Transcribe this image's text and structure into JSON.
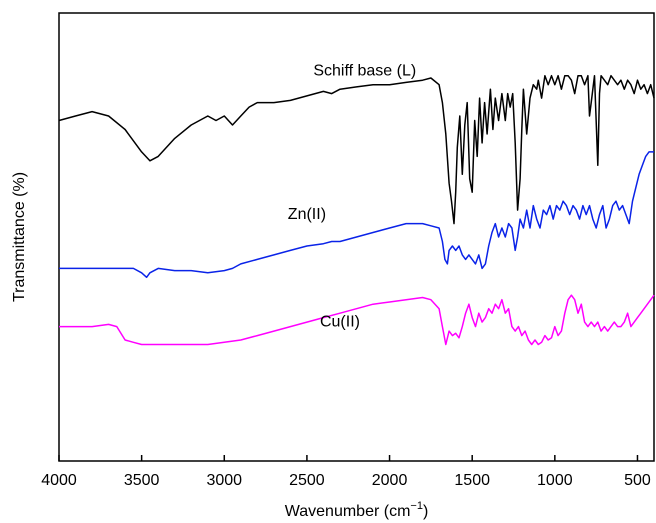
{
  "chart_data": {
    "type": "line",
    "xlabel": "Wavenumber (cm",
    "xlabel_sup": "−1",
    "xlabel_close": ")",
    "ylabel": "Transmittance (%)",
    "xlim": [
      4000,
      400
    ],
    "x_reversed": true,
    "ylim": [
      0,
      100
    ],
    "y_tick_labels_shown": false,
    "grid": false,
    "x_ticks": [
      4000,
      3500,
      3000,
      2500,
      2000,
      1500,
      1000,
      500
    ],
    "series": [
      {
        "name": "Schiff base (L)",
        "color": "#000000",
        "label_at": [
          2150,
          86
        ],
        "points": [
          [
            4000,
            76
          ],
          [
            3900,
            77
          ],
          [
            3800,
            78
          ],
          [
            3700,
            77
          ],
          [
            3600,
            74
          ],
          [
            3500,
            69
          ],
          [
            3450,
            67
          ],
          [
            3400,
            68
          ],
          [
            3300,
            72
          ],
          [
            3200,
            75
          ],
          [
            3100,
            77
          ],
          [
            3050,
            76
          ],
          [
            3000,
            77
          ],
          [
            2950,
            75
          ],
          [
            2900,
            77
          ],
          [
            2850,
            79
          ],
          [
            2800,
            80
          ],
          [
            2700,
            80
          ],
          [
            2600,
            80.5
          ],
          [
            2500,
            81.5
          ],
          [
            2400,
            82.5
          ],
          [
            2350,
            82
          ],
          [
            2300,
            83
          ],
          [
            2200,
            83.5
          ],
          [
            2100,
            84
          ],
          [
            2000,
            84
          ],
          [
            1900,
            84.5
          ],
          [
            1800,
            85
          ],
          [
            1750,
            85.5
          ],
          [
            1700,
            84
          ],
          [
            1680,
            80
          ],
          [
            1660,
            73
          ],
          [
            1640,
            62
          ],
          [
            1625,
            58
          ],
          [
            1610,
            53
          ],
          [
            1600,
            60
          ],
          [
            1590,
            70
          ],
          [
            1575,
            77
          ],
          [
            1560,
            64
          ],
          [
            1545,
            75
          ],
          [
            1530,
            80
          ],
          [
            1515,
            63
          ],
          [
            1500,
            60
          ],
          [
            1485,
            76
          ],
          [
            1470,
            68
          ],
          [
            1455,
            81
          ],
          [
            1440,
            71
          ],
          [
            1425,
            80
          ],
          [
            1410,
            73
          ],
          [
            1390,
            83
          ],
          [
            1375,
            74
          ],
          [
            1360,
            81
          ],
          [
            1340,
            76
          ],
          [
            1320,
            82
          ],
          [
            1300,
            76
          ],
          [
            1285,
            82
          ],
          [
            1270,
            79
          ],
          [
            1255,
            82
          ],
          [
            1240,
            71
          ],
          [
            1225,
            56
          ],
          [
            1210,
            63
          ],
          [
            1200,
            74
          ],
          [
            1190,
            83
          ],
          [
            1170,
            73
          ],
          [
            1150,
            81
          ],
          [
            1130,
            84
          ],
          [
            1110,
            83
          ],
          [
            1100,
            85
          ],
          [
            1080,
            81
          ],
          [
            1060,
            86
          ],
          [
            1040,
            84
          ],
          [
            1020,
            86
          ],
          [
            1000,
            84
          ],
          [
            980,
            86
          ],
          [
            960,
            83
          ],
          [
            940,
            86
          ],
          [
            920,
            86
          ],
          [
            900,
            85
          ],
          [
            880,
            82
          ],
          [
            860,
            86
          ],
          [
            840,
            86
          ],
          [
            820,
            84
          ],
          [
            800,
            86
          ],
          [
            790,
            77
          ],
          [
            780,
            80
          ],
          [
            760,
            86
          ],
          [
            740,
            66
          ],
          [
            730,
            82
          ],
          [
            720,
            86
          ],
          [
            700,
            85
          ],
          [
            680,
            84
          ],
          [
            660,
            86
          ],
          [
            640,
            85
          ],
          [
            620,
            84
          ],
          [
            600,
            85
          ],
          [
            580,
            83
          ],
          [
            560,
            85
          ],
          [
            540,
            84
          ],
          [
            520,
            82
          ],
          [
            500,
            85
          ],
          [
            480,
            83
          ],
          [
            460,
            84
          ],
          [
            440,
            82
          ],
          [
            420,
            84
          ],
          [
            400,
            81
          ]
        ]
      },
      {
        "name": "Zn(II)",
        "color": "#0a23e8",
        "label_at": [
          2500,
          54
        ],
        "points": [
          [
            4000,
            43
          ],
          [
            3900,
            43
          ],
          [
            3800,
            43
          ],
          [
            3700,
            43
          ],
          [
            3600,
            43
          ],
          [
            3550,
            43
          ],
          [
            3500,
            42
          ],
          [
            3470,
            41
          ],
          [
            3450,
            42
          ],
          [
            3400,
            43
          ],
          [
            3300,
            42.5
          ],
          [
            3200,
            42.5
          ],
          [
            3100,
            42
          ],
          [
            3000,
            42.5
          ],
          [
            2950,
            43
          ],
          [
            2900,
            44
          ],
          [
            2800,
            45
          ],
          [
            2700,
            46
          ],
          [
            2600,
            47
          ],
          [
            2500,
            48
          ],
          [
            2400,
            48.5
          ],
          [
            2350,
            49
          ],
          [
            2300,
            49
          ],
          [
            2200,
            50
          ],
          [
            2100,
            51
          ],
          [
            2000,
            52
          ],
          [
            1900,
            53
          ],
          [
            1800,
            53
          ],
          [
            1750,
            52.5
          ],
          [
            1700,
            52
          ],
          [
            1680,
            49
          ],
          [
            1665,
            45
          ],
          [
            1650,
            44
          ],
          [
            1640,
            47
          ],
          [
            1620,
            48
          ],
          [
            1600,
            47
          ],
          [
            1580,
            48
          ],
          [
            1560,
            46
          ],
          [
            1540,
            45
          ],
          [
            1520,
            46
          ],
          [
            1500,
            45
          ],
          [
            1480,
            44
          ],
          [
            1460,
            46
          ],
          [
            1440,
            43
          ],
          [
            1420,
            44
          ],
          [
            1400,
            48
          ],
          [
            1380,
            51
          ],
          [
            1360,
            53
          ],
          [
            1340,
            50
          ],
          [
            1320,
            52
          ],
          [
            1300,
            50
          ],
          [
            1280,
            53
          ],
          [
            1260,
            52
          ],
          [
            1240,
            47
          ],
          [
            1225,
            50
          ],
          [
            1210,
            54
          ],
          [
            1190,
            52
          ],
          [
            1170,
            56
          ],
          [
            1150,
            52
          ],
          [
            1130,
            57
          ],
          [
            1110,
            54
          ],
          [
            1090,
            52
          ],
          [
            1070,
            56
          ],
          [
            1050,
            55
          ],
          [
            1030,
            57
          ],
          [
            1010,
            54
          ],
          [
            990,
            57
          ],
          [
            970,
            56
          ],
          [
            950,
            58
          ],
          [
            930,
            57
          ],
          [
            910,
            55
          ],
          [
            890,
            57
          ],
          [
            870,
            56
          ],
          [
            850,
            54
          ],
          [
            830,
            57
          ],
          [
            810,
            55
          ],
          [
            790,
            57
          ],
          [
            770,
            54
          ],
          [
            750,
            52
          ],
          [
            730,
            55
          ],
          [
            710,
            57
          ],
          [
            690,
            52
          ],
          [
            670,
            54
          ],
          [
            650,
            57
          ],
          [
            630,
            58
          ],
          [
            610,
            56
          ],
          [
            590,
            57
          ],
          [
            570,
            55
          ],
          [
            550,
            53
          ],
          [
            530,
            58
          ],
          [
            510,
            61
          ],
          [
            490,
            64
          ],
          [
            470,
            66
          ],
          [
            450,
            68
          ],
          [
            430,
            69
          ],
          [
            400,
            69
          ]
        ]
      },
      {
        "name": "Cu(II)",
        "color": "#ff00ff",
        "label_at": [
          2300,
          30
        ],
        "points": [
          [
            4000,
            30
          ],
          [
            3900,
            30
          ],
          [
            3800,
            30
          ],
          [
            3700,
            30.5
          ],
          [
            3650,
            30
          ],
          [
            3600,
            27
          ],
          [
            3550,
            26.5
          ],
          [
            3500,
            26
          ],
          [
            3400,
            26
          ],
          [
            3300,
            26
          ],
          [
            3200,
            26
          ],
          [
            3100,
            26
          ],
          [
            3000,
            26.5
          ],
          [
            2900,
            27
          ],
          [
            2800,
            28
          ],
          [
            2700,
            29
          ],
          [
            2600,
            30
          ],
          [
            2500,
            31
          ],
          [
            2400,
            32
          ],
          [
            2300,
            33
          ],
          [
            2200,
            34
          ],
          [
            2100,
            35
          ],
          [
            2000,
            35.5
          ],
          [
            1900,
            36
          ],
          [
            1800,
            36.5
          ],
          [
            1750,
            36
          ],
          [
            1700,
            34
          ],
          [
            1680,
            30
          ],
          [
            1660,
            26
          ],
          [
            1640,
            29
          ],
          [
            1620,
            28
          ],
          [
            1600,
            28.5
          ],
          [
            1580,
            27.5
          ],
          [
            1560,
            30
          ],
          [
            1540,
            33
          ],
          [
            1520,
            35
          ],
          [
            1500,
            32
          ],
          [
            1480,
            30
          ],
          [
            1460,
            33
          ],
          [
            1440,
            31
          ],
          [
            1420,
            32
          ],
          [
            1400,
            34
          ],
          [
            1380,
            33
          ],
          [
            1360,
            35
          ],
          [
            1340,
            34
          ],
          [
            1320,
            36
          ],
          [
            1300,
            33
          ],
          [
            1280,
            34
          ],
          [
            1260,
            30
          ],
          [
            1240,
            29
          ],
          [
            1220,
            30
          ],
          [
            1200,
            28
          ],
          [
            1180,
            29
          ],
          [
            1160,
            27
          ],
          [
            1140,
            26
          ],
          [
            1120,
            27
          ],
          [
            1100,
            26
          ],
          [
            1080,
            26.5
          ],
          [
            1060,
            28
          ],
          [
            1040,
            27
          ],
          [
            1020,
            27.5
          ],
          [
            1000,
            30
          ],
          [
            980,
            28
          ],
          [
            960,
            29
          ],
          [
            940,
            33
          ],
          [
            920,
            36
          ],
          [
            900,
            37
          ],
          [
            880,
            36
          ],
          [
            860,
            33
          ],
          [
            840,
            35
          ],
          [
            820,
            31
          ],
          [
            800,
            30
          ],
          [
            780,
            31
          ],
          [
            760,
            30
          ],
          [
            740,
            31
          ],
          [
            720,
            29
          ],
          [
            700,
            30
          ],
          [
            680,
            29
          ],
          [
            660,
            30
          ],
          [
            640,
            31
          ],
          [
            620,
            30
          ],
          [
            600,
            30
          ],
          [
            580,
            31
          ],
          [
            560,
            33
          ],
          [
            540,
            30
          ],
          [
            520,
            31
          ],
          [
            500,
            32
          ],
          [
            480,
            33
          ],
          [
            460,
            34
          ],
          [
            440,
            35
          ],
          [
            420,
            36
          ],
          [
            400,
            37
          ]
        ]
      }
    ]
  }
}
